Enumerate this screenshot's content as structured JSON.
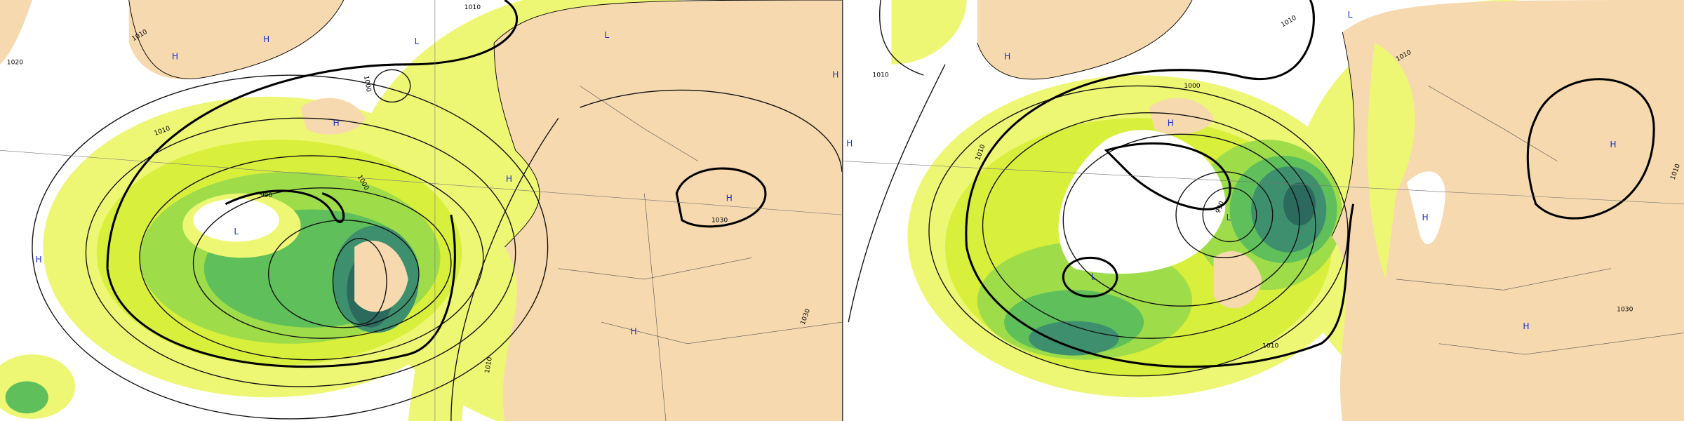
{
  "panels": [
    {
      "centers": [
        "L",
        "L",
        "L",
        "H",
        "H",
        "H",
        "H",
        "H",
        "H",
        "H",
        "H"
      ],
      "isobar_labels": [
        "1010",
        "1010",
        "1010",
        "1020",
        "1000",
        "1000",
        "990",
        "1030",
        "1030",
        "1010"
      ]
    },
    {
      "centers": [
        "L",
        "L",
        "L",
        "H",
        "H",
        "H",
        "H",
        "H",
        "H"
      ],
      "isobar_labels": [
        "1010",
        "1010",
        "1000",
        "990",
        "1010",
        "1010",
        "1010",
        "1030",
        "1010"
      ]
    }
  ]
}
